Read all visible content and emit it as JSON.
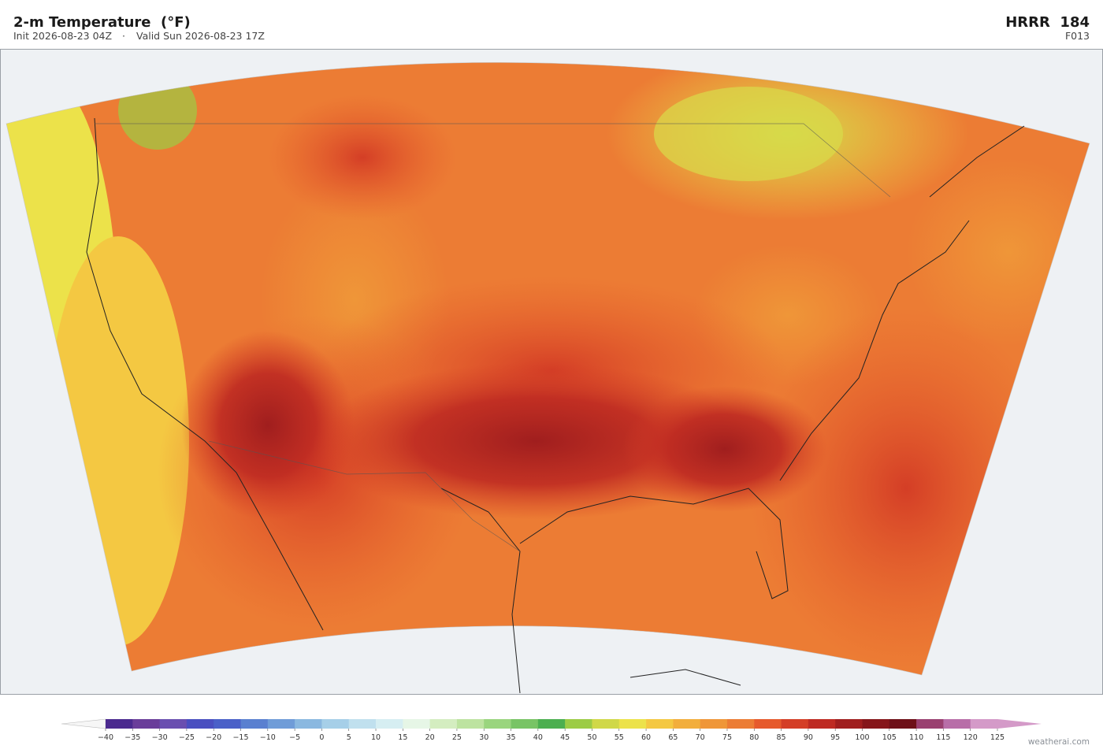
{
  "header": {
    "title": "2-m Temperature  (°F)",
    "init": "Init 2026-08-23 04Z",
    "separator": "·",
    "valid": "Valid Sun 2026-08-23 17Z",
    "model": "HRRR  184",
    "forecast_hour": "F013"
  },
  "colorbar": {
    "ticks": [
      {
        "value": -40,
        "label": "−40"
      },
      {
        "value": -35,
        "label": "−35"
      },
      {
        "value": -30,
        "label": "−30"
      },
      {
        "value": -25,
        "label": "−25"
      },
      {
        "value": -20,
        "label": "−20"
      },
      {
        "value": -15,
        "label": "−15"
      },
      {
        "value": -10,
        "label": "−10"
      },
      {
        "value": -5,
        "label": "−5"
      },
      0,
      5,
      10,
      15,
      20,
      25,
      30,
      35,
      40,
      45,
      50,
      55,
      60,
      65,
      70,
      75,
      80,
      85,
      90,
      95,
      100,
      105,
      110,
      115,
      120,
      125
    ],
    "colors": [
      "#4b2a8f",
      "#6a3d9a",
      "#6a4fb0",
      "#4a4fc0",
      "#4a60c8",
      "#5a80d0",
      "#6f9cd8",
      "#8ab8e0",
      "#a6cfe8",
      "#c0e0ee",
      "#d6eef2",
      "#e6f6e6",
      "#d4edc0",
      "#bde3a0",
      "#9ad57e",
      "#78c465",
      "#4caf50",
      "#9ccc45",
      "#d0d848",
      "#ece24a",
      "#f4c842",
      "#f2ae3c",
      "#ef9638",
      "#ec7c34",
      "#e65a2c",
      "#d43e26",
      "#be2a22",
      "#a01e1e",
      "#86161a",
      "#6e1018",
      "#9a4070",
      "#b86ea8",
      "#d49ac8"
    ],
    "under_color": "#f6f6f6",
    "over_color": "#d49ac8"
  },
  "credit": "weatherai.com"
}
